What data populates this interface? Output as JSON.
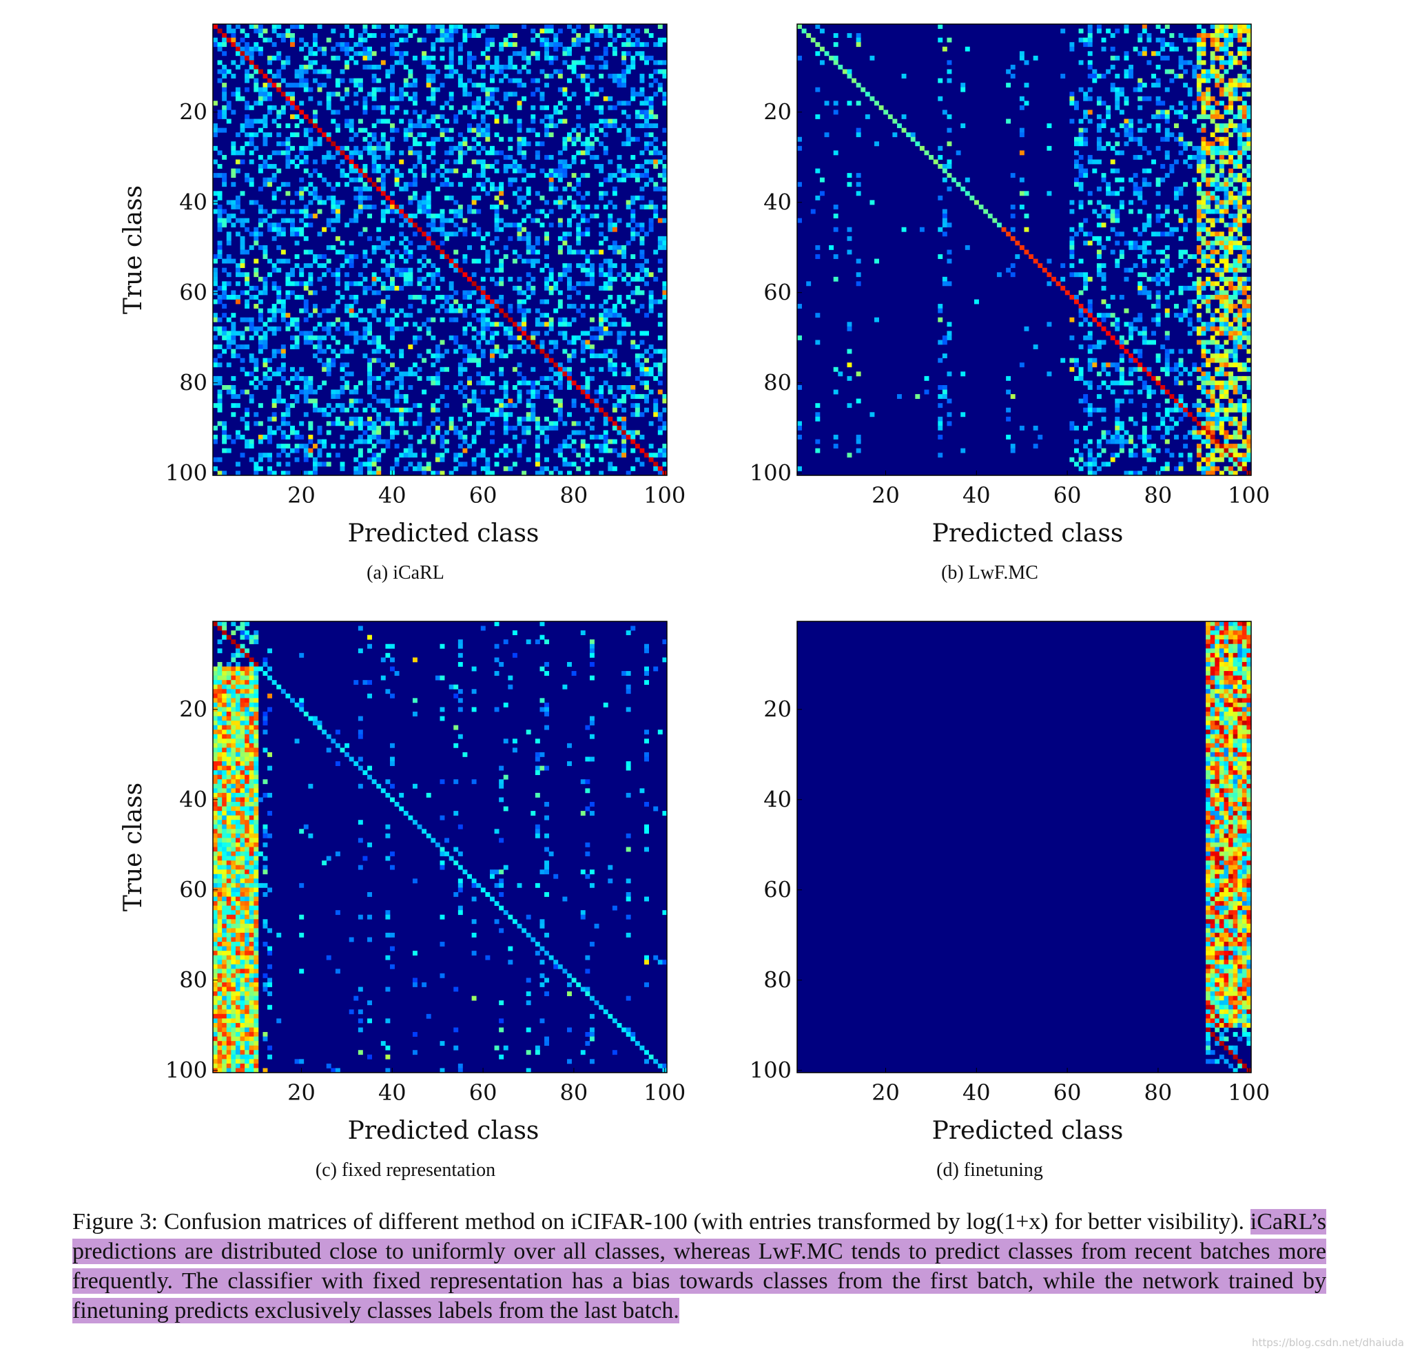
{
  "chart_data": [
    {
      "type": "heatmap",
      "panel": "a",
      "subcaption": "(a) iCaRL",
      "xlabel": "Predicted class",
      "ylabel": "True class",
      "xlim": [
        1,
        100
      ],
      "ylim": [
        1,
        100
      ],
      "xticks": [
        20,
        40,
        60,
        80,
        100
      ],
      "yticks": [
        20,
        40,
        60,
        80,
        100
      ],
      "colormap": "jet",
      "pattern": "uniform",
      "description": "strong diagonal; off-diagonal confusions spread roughly uniformly over all predicted classes"
    },
    {
      "type": "heatmap",
      "panel": "b",
      "subcaption": "(b) LwF.MC",
      "xlabel": "Predicted class",
      "ylabel": "",
      "xlim": [
        1,
        100
      ],
      "ylim": [
        1,
        100
      ],
      "xticks": [
        20,
        40,
        60,
        80,
        100
      ],
      "yticks": [
        20,
        40,
        60,
        80,
        100
      ],
      "colormap": "jet",
      "pattern": "recent",
      "description": "diagonal; confusions concentrated on recent batches (predicted classes ~60-100), sparse vertical streaks elsewhere"
    },
    {
      "type": "heatmap",
      "panel": "c",
      "subcaption": "(c) fixed representation",
      "xlabel": "Predicted class",
      "ylabel": "True class",
      "xlim": [
        1,
        100
      ],
      "ylim": [
        1,
        100
      ],
      "xticks": [
        20,
        40,
        60,
        80,
        100
      ],
      "yticks": [
        20,
        40,
        60,
        80,
        100
      ],
      "colormap": "jet",
      "pattern": "first",
      "description": "dense band over predicted classes 1-10 (first batch) for all true classes; weak scattered entries elsewhere"
    },
    {
      "type": "heatmap",
      "panel": "d",
      "subcaption": "(d) finetuning",
      "xlabel": "Predicted class",
      "ylabel": "",
      "xlim": [
        1,
        100
      ],
      "ylim": [
        1,
        100
      ],
      "xticks": [
        20,
        40,
        60,
        80,
        100
      ],
      "yticks": [
        20,
        40,
        60,
        80,
        100
      ],
      "colormap": "jet",
      "pattern": "last",
      "description": "all predictions in classes 91-100 (last batch); everything else zero"
    }
  ],
  "caption": {
    "line1": "Figure 3: Confusion matrices of different method on iCIFAR-100 (with entries transformed by log(1+x) for better visibility).",
    "highlighted": "iCaRL’s predictions are distributed close to uniformly over all classes, whereas LwF.MC tends to predict classes from recent batches more frequently.  The classifier with fixed representation has a bias towards classes from the first batch, while the network trained by finetuning predicts exclusively classes labels from the last batch."
  },
  "watermark": "https://blog.csdn.net/dhaiuda"
}
